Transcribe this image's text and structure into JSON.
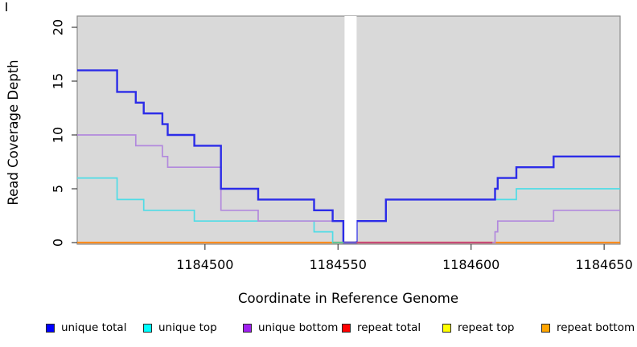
{
  "chart_data": {
    "type": "line",
    "subtype": "step",
    "title": "",
    "xlabel": "Coordinate in Reference Genome",
    "ylabel": "Read Coverage Depth",
    "xlim": [
      1184452,
      1184656
    ],
    "ylim": [
      0,
      21
    ],
    "x_ticks": [
      1184500,
      1184550,
      1184600,
      1184650
    ],
    "y_ticks": [
      0,
      5,
      10,
      15,
      20
    ],
    "grid": false,
    "legend_position": "bottom",
    "plot_bg_color": "#D9D9D9",
    "outer_bg_color": "#FFFFFF",
    "box_color": "#8C8C8C",
    "tick_color": "#404040",
    "white_gap": {
      "x_start": 1184552,
      "x_end": 1184557
    },
    "series": [
      {
        "name": "repeat top",
        "color": "#F5F500",
        "points": [
          [
            1184452,
            0
          ],
          [
            1184656,
            0
          ]
        ]
      },
      {
        "name": "repeat total",
        "color": "#E8001F",
        "points": [
          [
            1184452,
            0
          ],
          [
            1184656,
            0
          ]
        ]
      },
      {
        "name": "repeat bottom",
        "color": "#FF8C1E",
        "points": [
          [
            1184452,
            0
          ],
          [
            1184656,
            0
          ]
        ]
      },
      {
        "name": "unique top",
        "color": "#4FDCE6",
        "points": [
          [
            1184452,
            6
          ],
          [
            1184467,
            4
          ],
          [
            1184477,
            3
          ],
          [
            1184496,
            2
          ],
          [
            1184541,
            1
          ],
          [
            1184548,
            0
          ],
          [
            1184557,
            2
          ],
          [
            1184568,
            4
          ],
          [
            1184617,
            5
          ],
          [
            1184656,
            5
          ]
        ]
      },
      {
        "name": "unique bottom",
        "color": "#B289DD",
        "points": [
          [
            1184452,
            10
          ],
          [
            1184474,
            9
          ],
          [
            1184484,
            8
          ],
          [
            1184486,
            7
          ],
          [
            1184506,
            3
          ],
          [
            1184520,
            2
          ],
          [
            1184552,
            0
          ],
          [
            1184609,
            1
          ],
          [
            1184610,
            2
          ],
          [
            1184631,
            3
          ],
          [
            1184656,
            3
          ]
        ]
      },
      {
        "name": "unique total",
        "color": "#2C2CE8",
        "points": [
          [
            1184452,
            16
          ],
          [
            1184467,
            14
          ],
          [
            1184474,
            13
          ],
          [
            1184477,
            12
          ],
          [
            1184484,
            11
          ],
          [
            1184486,
            10
          ],
          [
            1184496,
            9
          ],
          [
            1184506,
            5
          ],
          [
            1184520,
            4
          ],
          [
            1184541,
            3
          ],
          [
            1184548,
            2
          ],
          [
            1184552,
            0
          ],
          [
            1184557,
            2
          ],
          [
            1184568,
            4
          ],
          [
            1184609,
            5
          ],
          [
            1184610,
            6
          ],
          [
            1184617,
            7
          ],
          [
            1184631,
            8
          ],
          [
            1184656,
            8
          ]
        ]
      }
    ],
    "zero_line_overlays": [
      {
        "x_start": 1184548,
        "x_end": 1184552,
        "color": "#63C392"
      },
      {
        "x_start": 1184552,
        "x_end": 1184557,
        "color": "#6A5ACD"
      },
      {
        "x_start": 1184557,
        "x_end": 1184608,
        "color": "#C74B78"
      }
    ],
    "legend": [
      {
        "label": "unique total",
        "color": "#0000FF"
      },
      {
        "label": "unique top",
        "color": "#00FFFF"
      },
      {
        "label": "unique bottom",
        "color": "#A020F0"
      },
      {
        "label": "repeat total",
        "color": "#FF0000"
      },
      {
        "label": "repeat top",
        "color": "#FFFF00"
      },
      {
        "label": "repeat bottom",
        "color": "#FFA500"
      }
    ]
  }
}
